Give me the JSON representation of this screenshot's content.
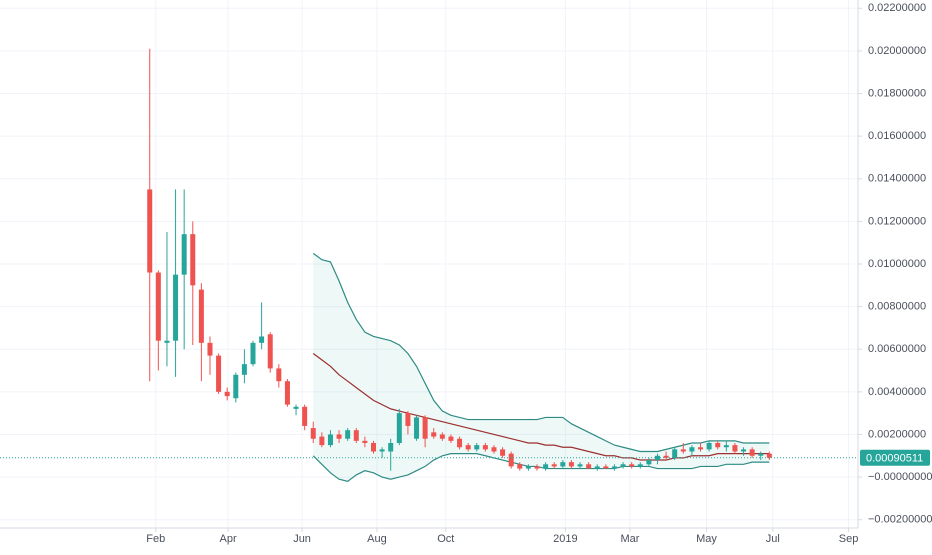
{
  "chart_data": {
    "type": "candlestick",
    "x": [
      0,
      1,
      2,
      3,
      4,
      5,
      6,
      7,
      8,
      9,
      10,
      11,
      12,
      13,
      14,
      15,
      16,
      17,
      18,
      19,
      20,
      21,
      22,
      23,
      24,
      25,
      26,
      27,
      28,
      29,
      30,
      31,
      32,
      33,
      34,
      35,
      36,
      37,
      38,
      39,
      40,
      41,
      42,
      43,
      44,
      45,
      46,
      47,
      48,
      49,
      50,
      51,
      52,
      53,
      54,
      55,
      56,
      57,
      58,
      59,
      60,
      61,
      62,
      63,
      64,
      65,
      66,
      67,
      68,
      69,
      70,
      71,
      72
    ],
    "open": [
      0.0135,
      0.0096,
      0.0063,
      0.0064,
      0.0095,
      0.0114,
      0.0088,
      0.0063,
      0.0057,
      0.004,
      0.0037,
      0.0048,
      0.0053,
      0.0063,
      0.0067,
      0.0051,
      0.0045,
      0.0032,
      0.0033,
      0.0023,
      0.0019,
      0.0015,
      0.002,
      0.0018,
      0.0022,
      0.0017,
      0.0016,
      0.0012,
      0.0012,
      0.0016,
      0.003,
      0.0018,
      0.0028,
      0.0021,
      0.002,
      0.0019,
      0.0018,
      0.0015,
      0.0013,
      0.0015,
      0.0014,
      0.0013,
      0.0011,
      0.0006,
      0.0004,
      0.0005,
      0.0004,
      0.0006,
      0.0005,
      0.0007,
      0.0005,
      0.0006,
      0.0004,
      0.0005,
      0.0004,
      0.0005,
      0.0006,
      0.0005,
      0.0006,
      0.0008,
      0.001,
      0.0009,
      0.0013,
      0.0012,
      0.0014,
      0.0013,
      0.0016,
      0.0014,
      0.0015,
      0.0012,
      0.0013,
      0.001,
      0.0011
    ],
    "high": [
      0.0201,
      0.0097,
      0.0115,
      0.0135,
      0.0135,
      0.012,
      0.0091,
      0.0066,
      0.0058,
      0.0042,
      0.0049,
      0.006,
      0.0064,
      0.0082,
      0.0068,
      0.0053,
      0.0046,
      0.0034,
      0.0034,
      0.0026,
      0.0021,
      0.0022,
      0.0022,
      0.0023,
      0.0023,
      0.0019,
      0.0017,
      0.0014,
      0.0018,
      0.0032,
      0.0031,
      0.0029,
      0.0029,
      0.0023,
      0.0021,
      0.002,
      0.0019,
      0.0016,
      0.0016,
      0.0016,
      0.0015,
      0.0014,
      0.0012,
      0.0007,
      0.0006,
      0.0006,
      0.0007,
      0.0007,
      0.0008,
      0.0008,
      0.0007,
      0.0007,
      0.0006,
      0.0006,
      0.0006,
      0.0007,
      0.0007,
      0.0007,
      0.0009,
      0.0011,
      0.0012,
      0.0014,
      0.0016,
      0.0015,
      0.0016,
      0.0017,
      0.0017,
      0.0017,
      0.0016,
      0.0014,
      0.0014,
      0.0012,
      0.0012
    ],
    "low": [
      0.0045,
      0.005,
      0.0052,
      0.0047,
      0.006,
      0.0062,
      0.0045,
      0.0048,
      0.0039,
      0.0036,
      0.0035,
      0.0044,
      0.0052,
      0.006,
      0.0049,
      0.0042,
      0.0033,
      0.0029,
      0.0022,
      0.0016,
      0.0014,
      0.0014,
      0.0016,
      0.0017,
      0.0016,
      0.0014,
      0.0011,
      0.0009,
      0.0003,
      0.0015,
      0.002,
      0.0017,
      0.0014,
      0.0018,
      0.0017,
      0.0016,
      0.0013,
      0.0012,
      0.0012,
      0.0012,
      0.0011,
      0.0009,
      0.0004,
      0.0003,
      0.0003,
      0.0003,
      0.0003,
      0.0004,
      0.0004,
      0.0004,
      0.0004,
      0.0004,
      0.0003,
      0.0004,
      0.0003,
      0.0004,
      0.0004,
      0.0004,
      0.0005,
      0.0006,
      0.0008,
      0.0008,
      0.0011,
      0.001,
      0.0012,
      0.0012,
      0.0013,
      0.0012,
      0.0011,
      0.001,
      0.0009,
      0.0008,
      0.0008
    ],
    "close": [
      0.0096,
      0.0064,
      0.0064,
      0.0095,
      0.0114,
      0.009,
      0.0063,
      0.0057,
      0.004,
      0.0038,
      0.0048,
      0.0053,
      0.0063,
      0.0066,
      0.0051,
      0.0045,
      0.0034,
      0.0033,
      0.0024,
      0.0018,
      0.0015,
      0.002,
      0.0018,
      0.0022,
      0.0017,
      0.0016,
      0.0012,
      0.0013,
      0.0016,
      0.003,
      0.0024,
      0.0028,
      0.0018,
      0.0019,
      0.0018,
      0.0017,
      0.0014,
      0.0013,
      0.0015,
      0.0013,
      0.0012,
      0.001,
      0.0005,
      0.0004,
      0.0005,
      0.0004,
      0.0006,
      0.0005,
      0.0007,
      0.0005,
      0.0006,
      0.0004,
      0.0005,
      0.0004,
      0.0005,
      0.0006,
      0.0005,
      0.0006,
      0.0008,
      0.001,
      0.0009,
      0.0013,
      0.0012,
      0.0014,
      0.0013,
      0.0016,
      0.0014,
      0.0015,
      0.0012,
      0.0013,
      0.001,
      0.0011,
      0.00090511
    ],
    "up_color": "#26a69a",
    "down_color": "#ef5350",
    "series": [
      {
        "color": "#2e8b84",
        "values": [
          null,
          null,
          null,
          null,
          null,
          null,
          null,
          null,
          null,
          null,
          null,
          null,
          null,
          null,
          null,
          null,
          null,
          null,
          null,
          0.0105,
          0.0102,
          0.0101,
          0.0092,
          0.0082,
          0.0074,
          0.0068,
          0.0066,
          0.0065,
          0.0064,
          0.0062,
          0.0058,
          0.0052,
          0.0044,
          0.0036,
          0.0031,
          0.0029,
          0.0028,
          0.0027,
          0.0027,
          0.0027,
          0.0027,
          0.0027,
          0.0027,
          0.0027,
          0.0027,
          0.0027,
          0.0028,
          0.0028,
          0.0028,
          0.0025,
          0.0023,
          0.0021,
          0.0019,
          0.0017,
          0.0015,
          0.0014,
          0.0013,
          0.0012,
          0.0012,
          0.0012,
          0.0013,
          0.0014,
          0.0015,
          0.0016,
          0.0016,
          0.0017,
          0.0017,
          0.0017,
          0.0017,
          0.0016,
          0.0016,
          0.0016,
          0.0016
        ]
      },
      {
        "color": "#9c2f2f",
        "values": [
          null,
          null,
          null,
          null,
          null,
          null,
          null,
          null,
          null,
          null,
          null,
          null,
          null,
          null,
          null,
          null,
          null,
          null,
          null,
          0.0058,
          0.0055,
          0.0052,
          0.0048,
          0.0045,
          0.0042,
          0.0039,
          0.0036,
          0.0034,
          0.0032,
          0.0031,
          0.003,
          0.0029,
          0.0028,
          0.0027,
          0.0026,
          0.0025,
          0.0024,
          0.0023,
          0.0022,
          0.0021,
          0.002,
          0.0019,
          0.0018,
          0.0017,
          0.0016,
          0.0016,
          0.0015,
          0.0015,
          0.0014,
          0.0014,
          0.0013,
          0.0012,
          0.0011,
          0.001,
          0.001,
          0.0009,
          0.0009,
          0.0008,
          0.0008,
          0.0008,
          0.0008,
          0.0009,
          0.0009,
          0.001,
          0.001,
          0.001,
          0.0011,
          0.0011,
          0.0011,
          0.0011,
          0.0011,
          0.0011,
          0.0011
        ]
      },
      {
        "color": "#2e8b84",
        "values": [
          null,
          null,
          null,
          null,
          null,
          null,
          null,
          null,
          null,
          null,
          null,
          null,
          null,
          null,
          null,
          null,
          null,
          null,
          null,
          0.001,
          0.0006,
          0.0002,
          -0.0001,
          -0.0002,
          0.0001,
          0.0003,
          0.0002,
          0.0,
          -0.0001,
          0.0,
          0.0001,
          0.0003,
          0.0005,
          0.0008,
          0.001,
          0.0011,
          0.0011,
          0.0011,
          0.0011,
          0.001,
          0.0009,
          0.0008,
          0.0007,
          0.0006,
          0.0005,
          0.0005,
          0.0004,
          0.0004,
          0.0004,
          0.0004,
          0.0004,
          0.0004,
          0.0004,
          0.0004,
          0.0004,
          0.0005,
          0.0005,
          0.0005,
          0.0005,
          0.0004,
          0.0004,
          0.0004,
          0.0004,
          0.0004,
          0.0005,
          0.0005,
          0.0005,
          0.0006,
          0.0006,
          0.0006,
          0.0007,
          0.0007,
          0.0007
        ]
      }
    ],
    "band_fill": "rgba(38,166,154,0.08)",
    "last_price_color": "#26a69a",
    "xlim": [
      -17.4,
      82.3
    ],
    "xticks": [
      {
        "value": 0.7,
        "label": "Feb"
      },
      {
        "value": 9.1,
        "label": "Apr"
      },
      {
        "value": 17.7,
        "label": "Jun"
      },
      {
        "value": 26.4,
        "label": "Aug"
      },
      {
        "value": 34.4,
        "label": "Oct"
      },
      {
        "value": 48.3,
        "label": "2019"
      },
      {
        "value": 55.8,
        "label": "Mar"
      },
      {
        "value": 64.7,
        "label": "May"
      },
      {
        "value": 72.4,
        "label": "Jul"
      },
      {
        "value": 81.2,
        "label": "Sep"
      }
    ],
    "ylim": [
      -0.00239,
      0.02239
    ],
    "yticks": [
      {
        "value": 0.022,
        "label": "0.02200000"
      },
      {
        "value": 0.02,
        "label": "0.02000000"
      },
      {
        "value": 0.018,
        "label": "0.01800000"
      },
      {
        "value": 0.016,
        "label": "0.01600000"
      },
      {
        "value": 0.014,
        "label": "0.01400000"
      },
      {
        "value": 0.012,
        "label": "0.01200000"
      },
      {
        "value": 0.01,
        "label": "0.01000000"
      },
      {
        "value": 0.008,
        "label": "0.00800000"
      },
      {
        "value": 0.006,
        "label": "0.00600000"
      },
      {
        "value": 0.004,
        "label": "0.00400000"
      },
      {
        "value": 0.002,
        "label": "0.00200000"
      },
      {
        "value": 0,
        "label": "−0.00000000"
      },
      {
        "value": -0.002,
        "label": "−0.00200000"
      }
    ],
    "grid": true
  }
}
